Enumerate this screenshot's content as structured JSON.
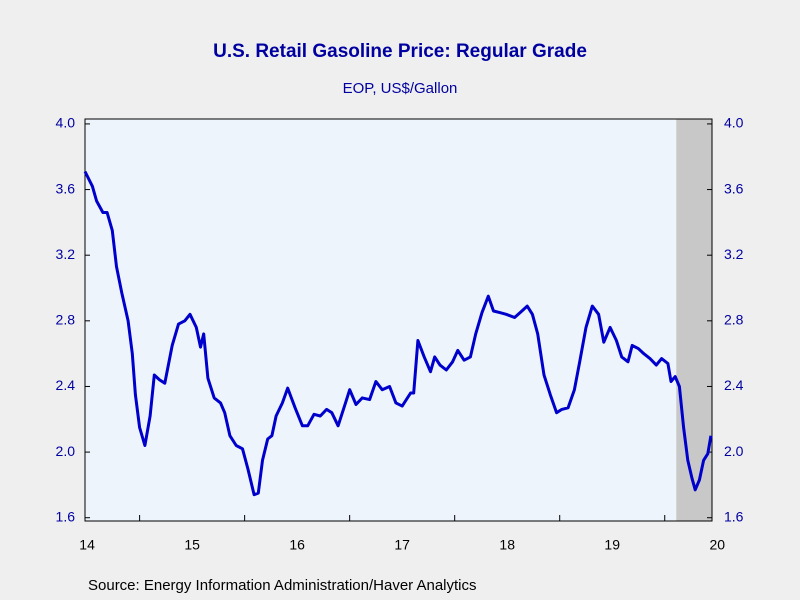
{
  "chart_data": {
    "type": "line",
    "title": "U.S. Retail Gasoline Price: Regular Grade",
    "subtitle": "EOP, US$/Gallon",
    "source": "Source:  Energy Information Administration/Haver Analytics",
    "x": [
      2014.48,
      2014.55,
      2014.59,
      2014.65,
      2014.69,
      2014.74,
      2014.78,
      2014.83,
      2014.89,
      2014.93,
      2014.96,
      2015.0,
      2015.05,
      2015.1,
      2015.14,
      2015.19,
      2015.24,
      2015.31,
      2015.37,
      2015.43,
      2015.48,
      2015.54,
      2015.58,
      2015.61,
      2015.65,
      2015.71,
      2015.77,
      2015.81,
      2015.86,
      2015.92,
      2015.98,
      2016.03,
      2016.09,
      2016.13,
      2016.17,
      2016.22,
      2016.26,
      2016.3,
      2016.36,
      2016.41,
      2016.48,
      2016.55,
      2016.6,
      2016.66,
      2016.72,
      2016.78,
      2016.83,
      2016.89,
      2016.96,
      2017.0,
      2017.06,
      2017.12,
      2017.19,
      2017.25,
      2017.31,
      2017.38,
      2017.44,
      2017.5,
      2017.58,
      2017.61,
      2017.65,
      2017.71,
      2017.77,
      2017.81,
      2017.86,
      2017.92,
      2017.98,
      2018.03,
      2018.09,
      2018.15,
      2018.2,
      2018.26,
      2018.32,
      2018.37,
      2018.43,
      2018.49,
      2018.57,
      2018.64,
      2018.69,
      2018.74,
      2018.79,
      2018.85,
      2018.91,
      2018.97,
      2019.02,
      2019.08,
      2019.14,
      2019.19,
      2019.25,
      2019.31,
      2019.37,
      2019.42,
      2019.48,
      2019.54,
      2019.59,
      2019.65,
      2019.69,
      2019.75,
      2019.8,
      2019.86,
      2019.92,
      2019.97,
      2020.03,
      2020.06,
      2020.1,
      2020.14,
      2020.18,
      2020.22,
      2020.26,
      2020.29,
      2020.33,
      2020.37,
      2020.41,
      2020.44
    ],
    "series": [
      {
        "name": "Regular Grade",
        "color": "#0000cc",
        "values": [
          3.71,
          3.62,
          3.53,
          3.46,
          3.46,
          3.35,
          3.13,
          2.97,
          2.8,
          2.6,
          2.35,
          2.15,
          2.04,
          2.22,
          2.47,
          2.44,
          2.42,
          2.65,
          2.78,
          2.8,
          2.84,
          2.76,
          2.64,
          2.72,
          2.45,
          2.33,
          2.3,
          2.24,
          2.1,
          2.04,
          2.02,
          1.9,
          1.74,
          1.75,
          1.95,
          2.08,
          2.1,
          2.22,
          2.3,
          2.39,
          2.27,
          2.16,
          2.16,
          2.23,
          2.22,
          2.26,
          2.24,
          2.16,
          2.3,
          2.38,
          2.29,
          2.33,
          2.32,
          2.43,
          2.38,
          2.4,
          2.3,
          2.28,
          2.36,
          2.36,
          2.68,
          2.58,
          2.49,
          2.58,
          2.53,
          2.5,
          2.55,
          2.62,
          2.56,
          2.58,
          2.72,
          2.85,
          2.95,
          2.86,
          2.85,
          2.84,
          2.82,
          2.86,
          2.89,
          2.84,
          2.72,
          2.47,
          2.35,
          2.24,
          2.26,
          2.27,
          2.38,
          2.55,
          2.76,
          2.89,
          2.84,
          2.67,
          2.76,
          2.68,
          2.58,
          2.55,
          2.65,
          2.63,
          2.6,
          2.57,
          2.53,
          2.57,
          2.54,
          2.43,
          2.46,
          2.4,
          2.15,
          1.95,
          1.84,
          1.77,
          1.83,
          1.95,
          1.99,
          2.1
        ]
      }
    ],
    "xlim": [
      2014.48,
      2020.45
    ],
    "xticks": [
      {
        "value": 2014.5,
        "label": "14"
      },
      {
        "value": 2015.5,
        "label": "15"
      },
      {
        "value": 2016.5,
        "label": "16"
      },
      {
        "value": 2017.5,
        "label": "17"
      },
      {
        "value": 2018.5,
        "label": "18"
      },
      {
        "value": 2019.5,
        "label": "19"
      },
      {
        "value": 2020.5,
        "label": "20"
      }
    ],
    "xminorticks": [
      2015,
      2016,
      2017,
      2018,
      2019,
      2020
    ],
    "ylim": [
      1.58,
      4.03
    ],
    "yticks": [
      {
        "value": 1.6,
        "label": "1.6"
      },
      {
        "value": 2,
        "label": "2.0"
      },
      2.4,
      2.8,
      3.2,
      3.6,
      {
        "value": 4,
        "label": "4.0"
      }
    ],
    "y2lim": [
      1.58,
      4.03
    ],
    "y2ticks": [
      {
        "value": 1.6,
        "label": "1.6"
      },
      {
        "value": 2,
        "label": "2.0"
      },
      2.4,
      2.8,
      3.2,
      3.6,
      {
        "value": 4,
        "label": "4.0"
      }
    ],
    "shading": [
      [
        2020.11,
        2020.45
      ]
    ],
    "shading_color": "#c8c8c8",
    "plot_background": "#eef4fc"
  }
}
